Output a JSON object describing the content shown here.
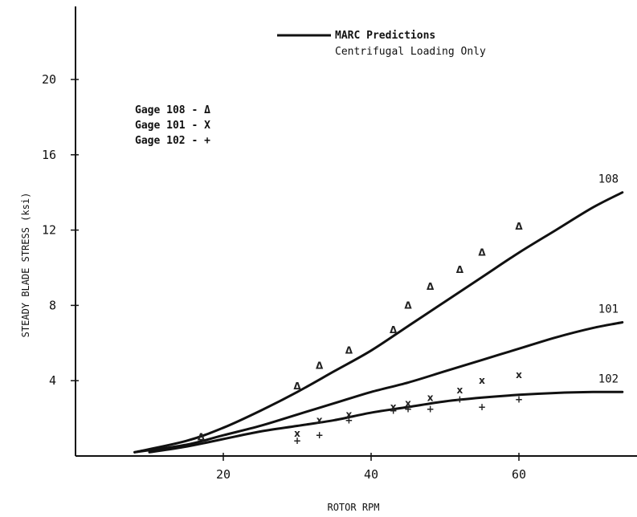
{
  "chart_data": {
    "type": "scatter",
    "title": "",
    "xlabel": "ROTOR RPM",
    "ylabel": "STEADY BLADE STRESS (ksi)",
    "xlim": [
      0,
      75
    ],
    "ylim": [
      0,
      24
    ],
    "xticks": [
      20,
      40,
      60
    ],
    "yticks": [
      4,
      8,
      12,
      16,
      20
    ],
    "xtick_labels": [
      "20",
      "40",
      "60"
    ],
    "ytick_labels": [
      "4",
      "8",
      "12",
      "16",
      "20"
    ],
    "grid": false,
    "legend_position": "top-center",
    "legend": {
      "line": {
        "name": "MARC Predictions",
        "subtitle": "Centrifugal Loading Only"
      },
      "markers": [
        {
          "label": "Gage 108 - Δ"
        },
        {
          "label": "Gage 101 - X"
        },
        {
          "label": "Gage 102 - +"
        }
      ]
    },
    "lines": [
      {
        "label": "108",
        "x": [
          8,
          15,
          20,
          25,
          30,
          35,
          40,
          45,
          50,
          55,
          60,
          65,
          70,
          74
        ],
        "y": [
          0.2,
          0.8,
          1.5,
          2.4,
          3.4,
          4.5,
          5.6,
          6.9,
          8.2,
          9.5,
          10.8,
          12.0,
          13.2,
          14.0
        ]
      },
      {
        "label": "101",
        "x": [
          8,
          15,
          20,
          25,
          30,
          35,
          40,
          45,
          50,
          55,
          60,
          65,
          70,
          74
        ],
        "y": [
          0.2,
          0.6,
          1.1,
          1.6,
          2.2,
          2.8,
          3.4,
          3.9,
          4.5,
          5.1,
          5.7,
          6.3,
          6.8,
          7.1
        ]
      },
      {
        "label": "102",
        "x": [
          10,
          15,
          20,
          25,
          30,
          35,
          40,
          45,
          50,
          55,
          60,
          65,
          70,
          74
        ],
        "y": [
          0.2,
          0.5,
          0.9,
          1.3,
          1.6,
          1.9,
          2.3,
          2.6,
          2.9,
          3.1,
          3.25,
          3.35,
          3.4,
          3.4
        ]
      }
    ],
    "series": [
      {
        "marker": "triangle",
        "symbol": "Δ",
        "x": [
          17,
          30,
          33,
          37,
          43,
          45,
          48,
          52,
          55,
          60
        ],
        "y": [
          1.0,
          3.7,
          4.8,
          5.6,
          6.7,
          8.0,
          9.0,
          9.9,
          10.8,
          12.2
        ]
      },
      {
        "marker": "x",
        "symbol": "x",
        "x": [
          30,
          33,
          37,
          43,
          45,
          48,
          52,
          55,
          60
        ],
        "y": [
          1.2,
          1.9,
          2.2,
          2.6,
          2.8,
          3.1,
          3.5,
          4.0,
          4.3
        ]
      },
      {
        "marker": "plus",
        "symbol": "+",
        "x": [
          30,
          33,
          37,
          43,
          45,
          48,
          52,
          55,
          60
        ],
        "y": [
          0.8,
          1.1,
          1.9,
          2.4,
          2.5,
          2.5,
          3.0,
          2.6,
          3.0
        ]
      }
    ]
  }
}
